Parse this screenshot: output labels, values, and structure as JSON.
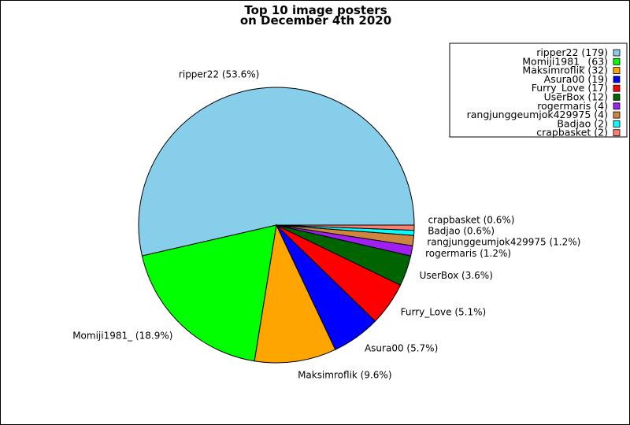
{
  "chart_data": {
    "type": "pie",
    "title": [
      "Top 10 image posters",
      "on December 4th 2020"
    ],
    "start_angle_deg": 0,
    "direction": "counterclockwise",
    "legend_placement": "top-right",
    "slices": [
      {
        "name": "ripper22",
        "value": 179,
        "label": "ripper22 (53.6%)",
        "legend": "ripper22 (179)",
        "color": "#87ceeb"
      },
      {
        "name": "Momiji1981_",
        "value": 63,
        "label": "Momiji1981_ (18.9%)",
        "legend": "Momiji1981_ (63)",
        "color": "#00ff00"
      },
      {
        "name": "Maksimroflik",
        "value": 32,
        "label": "Maksimroflik (9.6%)",
        "legend": "Maksimroflik (32)",
        "color": "#ffa500"
      },
      {
        "name": "Asura00",
        "value": 19,
        "label": "Asura00 (5.7%)",
        "legend": "Asura00 (19)",
        "color": "#0000ff"
      },
      {
        "name": "Furry_Love",
        "value": 17,
        "label": "Furry_Love (5.1%)",
        "legend": "Furry_Love (17)",
        "color": "#ff0000"
      },
      {
        "name": "UserBox",
        "value": 12,
        "label": "UserBox (3.6%)",
        "legend": "UserBox (12)",
        "color": "#006400"
      },
      {
        "name": "rogermaris",
        "value": 4,
        "label": "rogermaris (1.2%)",
        "legend": "rogermaris (4)",
        "color": "#a020f0"
      },
      {
        "name": "rangjunggeumjok429975",
        "value": 4,
        "label": "rangjunggeumjok429975 (1.2%)",
        "legend": "rangjunggeumjok429975 (4)",
        "color": "#cd853f"
      },
      {
        "name": "Badjao",
        "value": 2,
        "label": "Badjao (0.6%)",
        "legend": "Badjao (2)",
        "color": "#00ffff"
      },
      {
        "name": "crapbasket",
        "value": 2,
        "label": "crapbasket (0.6%)",
        "legend": "crapbasket (2)",
        "color": "#fa8072"
      }
    ]
  }
}
